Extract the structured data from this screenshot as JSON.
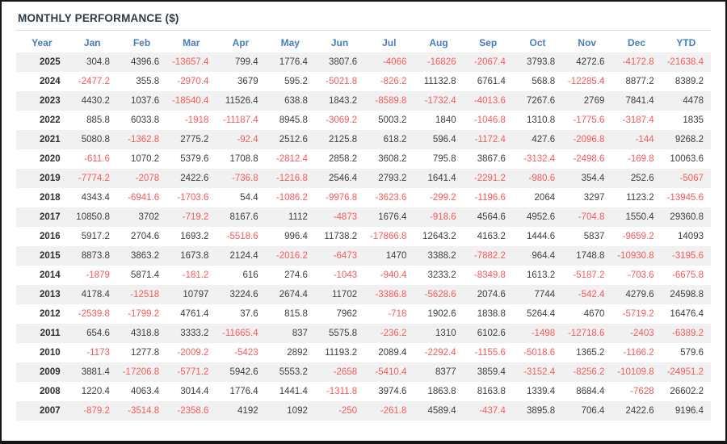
{
  "title": "MONTHLY PERFORMANCE ($)",
  "table": {
    "columns": [
      "Year",
      "Jan",
      "Feb",
      "Mar",
      "Apr",
      "May",
      "Jun",
      "Jul",
      "Aug",
      "Sep",
      "Oct",
      "Nov",
      "Dec",
      "YTD"
    ],
    "rows": [
      {
        "year": "2025",
        "values": [
          "304.8",
          "4396.6",
          "-13657.4",
          "799.4",
          "1776.4",
          "3807.6",
          "-4066",
          "-16826",
          "-2067.4",
          "3793.8",
          "4272.6",
          "-4172.8",
          "-21638.4"
        ]
      },
      {
        "year": "2024",
        "values": [
          "-2477.2",
          "355.8",
          "-2970.4",
          "3679",
          "595.2",
          "-5021.8",
          "-826.2",
          "11132.8",
          "6761.4",
          "568.8",
          "-12285.4",
          "8877.2",
          "8389.2"
        ]
      },
      {
        "year": "2023",
        "values": [
          "4430.2",
          "1037.6",
          "-18540.4",
          "11526.4",
          "638.8",
          "1843.2",
          "-8589.8",
          "-1732.4",
          "-4013.6",
          "7267.6",
          "2769",
          "7841.4",
          "4478"
        ]
      },
      {
        "year": "2022",
        "values": [
          "885.8",
          "6033.8",
          "-1918",
          "-11187.4",
          "8945.8",
          "-3069.2",
          "5003.2",
          "1840",
          "-1046.8",
          "1310.8",
          "-1775.6",
          "-3187.4",
          "1835"
        ]
      },
      {
        "year": "2021",
        "values": [
          "5080.8",
          "-1362.8",
          "2775.2",
          "-92.4",
          "2512.6",
          "2125.8",
          "618.2",
          "596.4",
          "-1172.4",
          "427.6",
          "-2096.8",
          "-144",
          "9268.2"
        ]
      },
      {
        "year": "2020",
        "values": [
          "-611.6",
          "1070.2",
          "5379.6",
          "1708.8",
          "-2812.4",
          "2858.2",
          "3608.2",
          "795.8",
          "3867.6",
          "-3132.4",
          "-2498.6",
          "-169.8",
          "10063.6"
        ]
      },
      {
        "year": "2019",
        "values": [
          "-7774.2",
          "-2078",
          "2422.6",
          "-736.8",
          "-1216.8",
          "2546.4",
          "2793.2",
          "1641.4",
          "-2291.2",
          "-980.6",
          "354.4",
          "252.6",
          "-5067"
        ]
      },
      {
        "year": "2018",
        "values": [
          "4343.4",
          "-6941.6",
          "-1703.6",
          "54.4",
          "-1086.2",
          "-9976.8",
          "-3623.6",
          "-299.2",
          "-1196.6",
          "2064",
          "3297",
          "1123.2",
          "-13945.6"
        ]
      },
      {
        "year": "2017",
        "values": [
          "10850.8",
          "3702",
          "-719.2",
          "8167.6",
          "1112",
          "-4873",
          "1676.4",
          "-918.6",
          "4564.6",
          "4952.6",
          "-704.8",
          "1550.4",
          "29360.8"
        ]
      },
      {
        "year": "2016",
        "values": [
          "5917.2",
          "2704.6",
          "1693.2",
          "-5518.6",
          "996.4",
          "11738.2",
          "-17866.8",
          "12643.2",
          "4163.2",
          "1444.6",
          "5837",
          "-9659.2",
          "14093"
        ]
      },
      {
        "year": "2015",
        "values": [
          "8873.8",
          "3863.2",
          "1673.8",
          "2124.4",
          "-2016.2",
          "-6473",
          "1470",
          "3388.2",
          "-7882.2",
          "964.4",
          "1748.8",
          "-10930.8",
          "-3195.6"
        ]
      },
      {
        "year": "2014",
        "values": [
          "-1879",
          "5871.4",
          "-181.2",
          "616",
          "274.6",
          "-1043",
          "-940.4",
          "3233.2",
          "-8349.8",
          "1613.2",
          "-5187.2",
          "-703.6",
          "-6675.8"
        ]
      },
      {
        "year": "2013",
        "values": [
          "4178.4",
          "-12518",
          "10797",
          "3224.6",
          "2674.4",
          "11702",
          "-3386.8",
          "-5628.6",
          "2074.6",
          "7744",
          "-542.4",
          "4279.6",
          "24598.8"
        ]
      },
      {
        "year": "2012",
        "values": [
          "-2539.8",
          "-1799.2",
          "4761.4",
          "37.6",
          "815.8",
          "7962",
          "-718",
          "1902.6",
          "1838.8",
          "5264.4",
          "4670",
          "-5719.2",
          "16476.4"
        ]
      },
      {
        "year": "2011",
        "values": [
          "654.6",
          "4318.8",
          "3333.2",
          "-11665.4",
          "837",
          "5575.8",
          "-236.2",
          "1310",
          "6102.6",
          "-1498",
          "-12718.6",
          "-2403",
          "-6389.2"
        ]
      },
      {
        "year": "2010",
        "values": [
          "-1173",
          "1277.8",
          "-2009.2",
          "-5423",
          "2892",
          "11193.2",
          "2089.4",
          "-2292.4",
          "-1155.6",
          "-5018.6",
          "1365.2",
          "-1166.2",
          "579.6"
        ]
      },
      {
        "year": "2009",
        "values": [
          "3881.4",
          "-17206.8",
          "-5771.2",
          "5942.6",
          "5553.2",
          "-2658",
          "-5410.4",
          "8377",
          "3859.4",
          "-3152.4",
          "-8256.2",
          "-10109.8",
          "-24951.2"
        ]
      },
      {
        "year": "2008",
        "values": [
          "1220.4",
          "4063.4",
          "3014.4",
          "1776.4",
          "1441.4",
          "-1311.8",
          "3974.6",
          "1863.8",
          "8163.8",
          "1339.4",
          "8684.4",
          "-7628",
          "26602.2"
        ]
      },
      {
        "year": "2007",
        "values": [
          "-879.2",
          "-3514.8",
          "-2358.6",
          "4192",
          "1092",
          "-250",
          "-261.8",
          "4589.4",
          "-437.4",
          "3895.8",
          "706.4",
          "2422.6",
          "9196.4"
        ]
      }
    ]
  },
  "colors": {
    "header_text": "#4a7ebd",
    "negative_value": "#f95c5c",
    "positive_value": "#3f3f3f",
    "year_text": "#2f2f2f",
    "title_text": "#2e3a46",
    "row_stripe": "#f1f1f1",
    "rule": "#dcdcdc",
    "frame_border": "#161616"
  }
}
